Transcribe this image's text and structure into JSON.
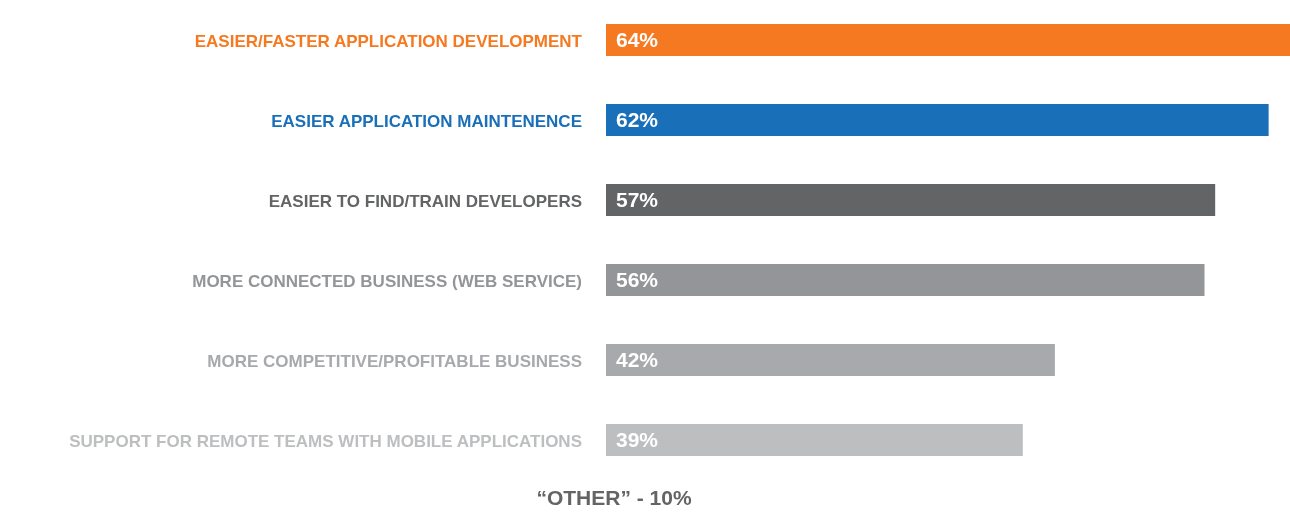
{
  "chart_data": {
    "type": "bar",
    "orientation": "horizontal",
    "categories": [
      "EASIER/FASTER APPLICATION DEVELOPMENT",
      "EASIER APPLICATION MAINTENENCE",
      "EASIER TO FIND/TRAIN DEVELOPERS",
      "MORE CONNECTED BUSINESS (WEB SERVICE)",
      "MORE COMPETITIVE/PROFITABLE BUSINESS",
      "SUPPORT FOR REMOTE TEAMS WITH MOBILE APPLICATIONS"
    ],
    "values": [
      64,
      62,
      57,
      56,
      42,
      39
    ],
    "value_labels": [
      "64%",
      "62%",
      "57%",
      "56%",
      "42%",
      "39%"
    ],
    "colors": [
      "#f47920",
      "#1a6fb9",
      "#636466",
      "#939598",
      "#a7a9ac",
      "#bcbec0"
    ],
    "annotations": [
      "“OTHER” - 10%"
    ],
    "grid": false,
    "legend": false
  }
}
